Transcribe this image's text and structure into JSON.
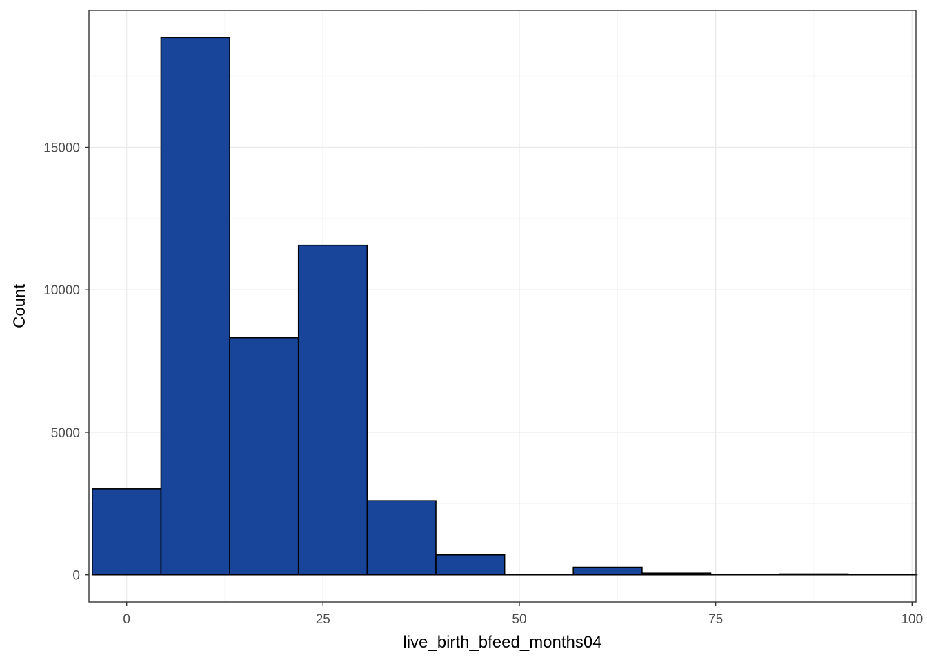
{
  "chart_data": {
    "type": "bar",
    "subtype": "histogram",
    "title": "",
    "xlabel": "live_birth_bfeed_months04",
    "ylabel": "Count",
    "xlim": [
      -4.8,
      100.5
    ],
    "ylim": [
      -950,
      19800
    ],
    "xticks": [
      0,
      25,
      50,
      75,
      100
    ],
    "xtick_labels": [
      "0",
      "25",
      "50",
      "75",
      "100"
    ],
    "yticks": [
      0,
      5000,
      10000,
      15000
    ],
    "ytick_labels": [
      "0",
      "5000",
      "10000",
      "15000"
    ],
    "grid": true,
    "legend": "none",
    "bin_edges": [
      -4.375,
      4.375,
      13.125,
      21.875,
      30.625,
      39.375,
      48.125,
      56.875,
      65.625,
      74.375,
      83.125,
      91.875,
      100.625
    ],
    "values": [
      3020,
      18850,
      8320,
      11560,
      2600,
      700,
      0,
      270,
      60,
      10,
      30,
      10
    ],
    "colors": {
      "bar_fill": "#18449a",
      "bar_stroke": "#000000",
      "panel_border": "#333333"
    }
  }
}
